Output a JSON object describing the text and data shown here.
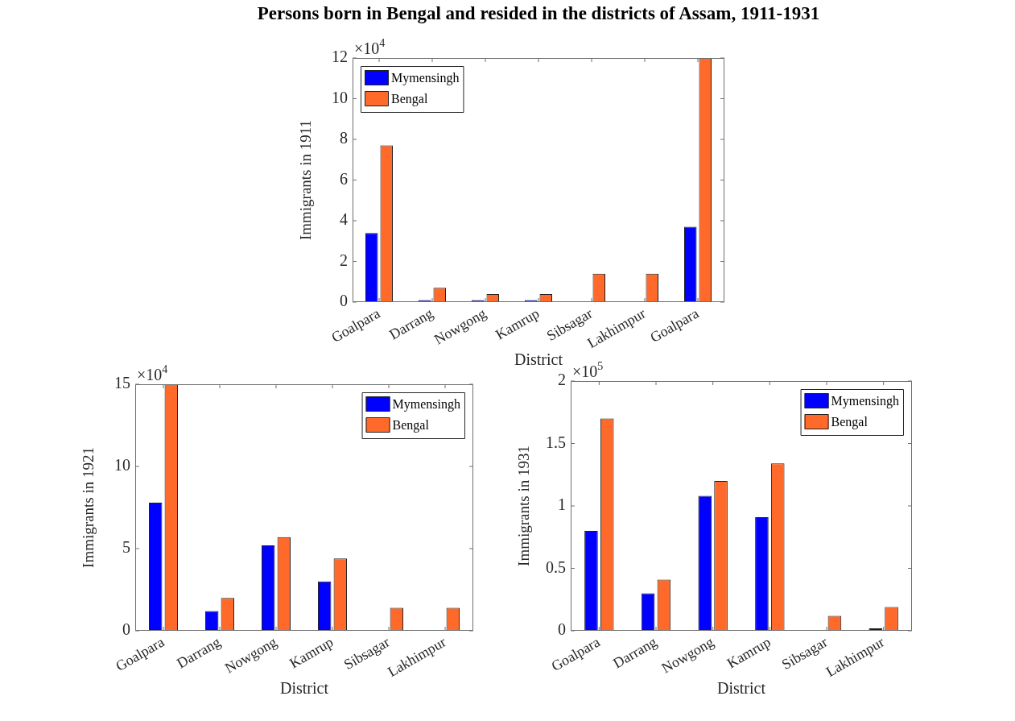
{
  "chart_data": [
    {
      "type": "bar",
      "title": "Persons born in Bengal and resided in the districts of Assam, 1911-1931",
      "xlabel": "District",
      "ylabel": "Immigrants in 1911",
      "annotations": [
        "×10$^{4}$"
      ],
      "legend": "top left",
      "categories": [
        "Goalpara",
        "Darrang",
        "Nowgong",
        "Kamrup",
        "Sibsagar",
        "Lakhimpur",
        "Goalpara"
      ],
      "series": [
        {
          "name": "Mymensingh",
          "color": "#0000ff",
          "values": [
            3.4,
            0.1,
            0.1,
            0.1,
            0,
            0,
            3.7
          ]
        },
        {
          "name": "Bengal",
          "color": "#ff6a2a",
          "values": [
            7.7,
            0.7,
            0.4,
            0.4,
            1.4,
            1.4,
            12
          ]
        }
      ],
      "ylim": [
        0,
        12
      ],
      "yticks": [
        0,
        2,
        4,
        6,
        8,
        10,
        12
      ]
    },
    {
      "type": "bar",
      "xlabel": "District",
      "ylabel": "Immigrants in 1921",
      "annotations": [
        "×10$^{4}$"
      ],
      "legend": "top right",
      "categories": [
        "Goalpara",
        "Darrang",
        "Nowgong",
        "Kamrup",
        "Sibsagar",
        "Lakhimpur"
      ],
      "series": [
        {
          "name": "Mymensingh",
          "color": "#0000ff",
          "values": [
            7.8,
            1.2,
            5.2,
            3.0,
            0,
            0
          ]
        },
        {
          "name": "Bengal",
          "color": "#ff6a2a",
          "values": [
            15,
            2.0,
            5.7,
            4.4,
            1.4,
            1.4
          ]
        }
      ],
      "ylim": [
        0,
        15
      ],
      "yticks": [
        0,
        5,
        10,
        15
      ]
    },
    {
      "type": "bar",
      "xlabel": "District",
      "ylabel": "Immigrants in 1931",
      "annotations": [
        "×10$^{5}$"
      ],
      "legend": "top right",
      "categories": [
        "Goalpara",
        "Darrang",
        "Nowgong",
        "Kamrup",
        "Sibsagar",
        "Lakhimpur"
      ],
      "series": [
        {
          "name": "Mymensingh",
          "color": "#0000ff",
          "values": [
            0.8,
            0.3,
            1.08,
            0.91,
            0,
            0.02
          ]
        },
        {
          "name": "Bengal",
          "color": "#ff6a2a",
          "values": [
            1.7,
            0.41,
            1.2,
            1.34,
            0.12,
            0.19
          ]
        }
      ],
      "ylim": [
        0,
        2
      ],
      "yticks": [
        0,
        0.5,
        1,
        1.5,
        2
      ]
    }
  ]
}
